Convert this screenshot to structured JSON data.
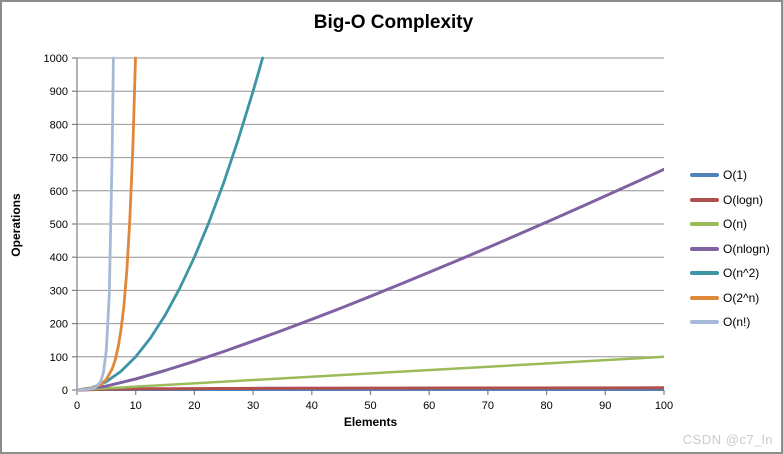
{
  "watermark": "CSDN @c7_ln",
  "chart_data": {
    "type": "line",
    "title": "Big-O Complexity",
    "xlabel": "Elements",
    "ylabel": "Operations",
    "xlim": [
      0,
      100
    ],
    "ylim": [
      0,
      1000
    ],
    "x_ticks": [
      0,
      10,
      20,
      30,
      40,
      50,
      60,
      70,
      80,
      90,
      100
    ],
    "y_ticks": [
      0,
      100,
      200,
      300,
      400,
      500,
      600,
      700,
      800,
      900,
      1000
    ],
    "grid": "horizontal",
    "legend_position": "right",
    "axis_color": "#7f7f7f",
    "gridline_color": "#929292",
    "series": [
      {
        "name": "O(1)",
        "color": "#4F81BD",
        "width": 2.5,
        "points": [
          [
            0,
            1
          ],
          [
            100,
            1
          ]
        ]
      },
      {
        "name": "O(logn)",
        "color": "#B04F4C",
        "width": 3,
        "points": [
          [
            0,
            0
          ],
          [
            1,
            0
          ],
          [
            2,
            1
          ],
          [
            3,
            1.58
          ],
          [
            4,
            2
          ],
          [
            6,
            2.58
          ],
          [
            8,
            3
          ],
          [
            12,
            3.58
          ],
          [
            16,
            4
          ],
          [
            24,
            4.58
          ],
          [
            32,
            5
          ],
          [
            48,
            5.58
          ],
          [
            64,
            6
          ],
          [
            100,
            6.64
          ]
        ]
      },
      {
        "name": "O(n)",
        "color": "#9BBB59",
        "width": 2.5,
        "points": [
          [
            0,
            0
          ],
          [
            100,
            100
          ]
        ]
      },
      {
        "name": "O(nlogn)",
        "color": "#7E62A1",
        "width": 3,
        "points": [
          [
            0,
            0
          ],
          [
            5,
            11.6
          ],
          [
            10,
            33.2
          ],
          [
            15,
            58.6
          ],
          [
            20,
            86.4
          ],
          [
            25,
            116.1
          ],
          [
            30,
            147.2
          ],
          [
            35,
            179.5
          ],
          [
            40,
            212.9
          ],
          [
            45,
            247.1
          ],
          [
            50,
            282.2
          ],
          [
            55,
            318.1
          ],
          [
            60,
            354.4
          ],
          [
            65,
            391.7
          ],
          [
            70,
            429.0
          ],
          [
            75,
            467.1
          ],
          [
            80,
            505.8
          ],
          [
            85,
            544.8
          ],
          [
            90,
            584.3
          ],
          [
            95,
            624.2
          ],
          [
            100,
            664.4
          ]
        ]
      },
      {
        "name": "O(n^2)",
        "color": "#3D95A5",
        "width": 2.8,
        "points": [
          [
            0,
            0
          ],
          [
            2.5,
            6.3
          ],
          [
            5,
            25
          ],
          [
            7.5,
            56.3
          ],
          [
            10,
            100
          ],
          [
            12.5,
            156.3
          ],
          [
            15,
            225
          ],
          [
            17.5,
            306.3
          ],
          [
            20,
            400
          ],
          [
            22.5,
            506.3
          ],
          [
            25,
            625
          ],
          [
            27.5,
            756.3
          ],
          [
            30,
            900
          ],
          [
            31.62,
            1000
          ]
        ]
      },
      {
        "name": "O(2^n)",
        "color": "#E0883A",
        "width": 2.8,
        "points": [
          [
            0,
            1
          ],
          [
            1,
            2
          ],
          [
            2,
            4
          ],
          [
            3,
            8
          ],
          [
            4,
            16
          ],
          [
            5,
            32
          ],
          [
            6,
            64
          ],
          [
            6.5,
            90.5
          ],
          [
            7,
            128
          ],
          [
            7.5,
            181
          ],
          [
            8,
            256
          ],
          [
            8.5,
            362
          ],
          [
            9,
            512
          ],
          [
            9.5,
            724
          ],
          [
            9.97,
            1000
          ]
        ]
      },
      {
        "name": "O(n!)",
        "color": "#A7B9D9",
        "width": 2.8,
        "points": [
          [
            0,
            1
          ],
          [
            1,
            1
          ],
          [
            2,
            2
          ],
          [
            3,
            6
          ],
          [
            4,
            24
          ],
          [
            4.5,
            52
          ],
          [
            5,
            120
          ],
          [
            5.5,
            288
          ],
          [
            6,
            720
          ],
          [
            6.2,
            1000
          ]
        ]
      }
    ]
  }
}
